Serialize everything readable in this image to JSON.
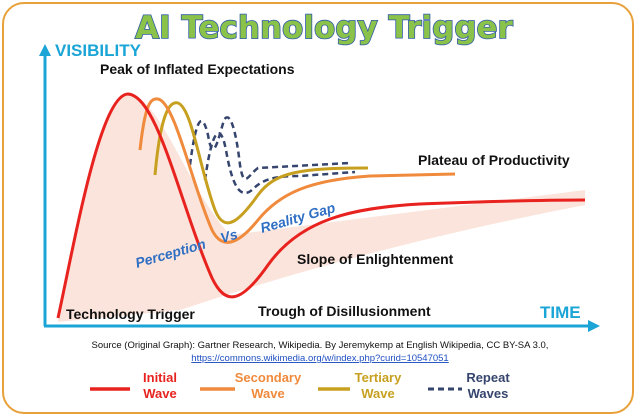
{
  "title": "AI Technology Trigger",
  "axes": {
    "y_label": "VISIBILITY",
    "x_label": "TIME"
  },
  "stages": {
    "peak": "Peak of Inflated Expectations",
    "plateau": "Plateau of Productivity",
    "slope": "Slope of Enlightenment",
    "trigger": "Technology Trigger",
    "trough": "Trough of Disillusionment"
  },
  "gap_labels": {
    "perception": "Perception",
    "vs": "Vs",
    "reality": "Reality Gap"
  },
  "source": {
    "text": "Source (Original Graph): Gartner Research, Wikipedia. By Jeremykemp at English Wikipedia, CC BY-SA 3.0,",
    "url": "https://commons.wikimedia.org/w/index.php?curid=10547051"
  },
  "legend": [
    {
      "line1": "Initial",
      "line2": "Wave",
      "color": "#e8231f",
      "style": "solid"
    },
    {
      "line1": "Secondary",
      "line2": "Wave",
      "color": "#f08a3c",
      "style": "solid"
    },
    {
      "line1": "Tertiary",
      "line2": "Wave",
      "color": "#c8a020",
      "style": "solid"
    },
    {
      "line1": "Repeat",
      "line2": "Waves",
      "color": "#36456e",
      "style": "dashed"
    }
  ],
  "colors": {
    "frame": "#e8a13a",
    "axis": "#1aa5d6",
    "initial": "#e8231f",
    "secondary": "#f08a3c",
    "tertiary": "#c8a020",
    "repeat": "#36456e",
    "shade": "#fbe1d7"
  }
}
